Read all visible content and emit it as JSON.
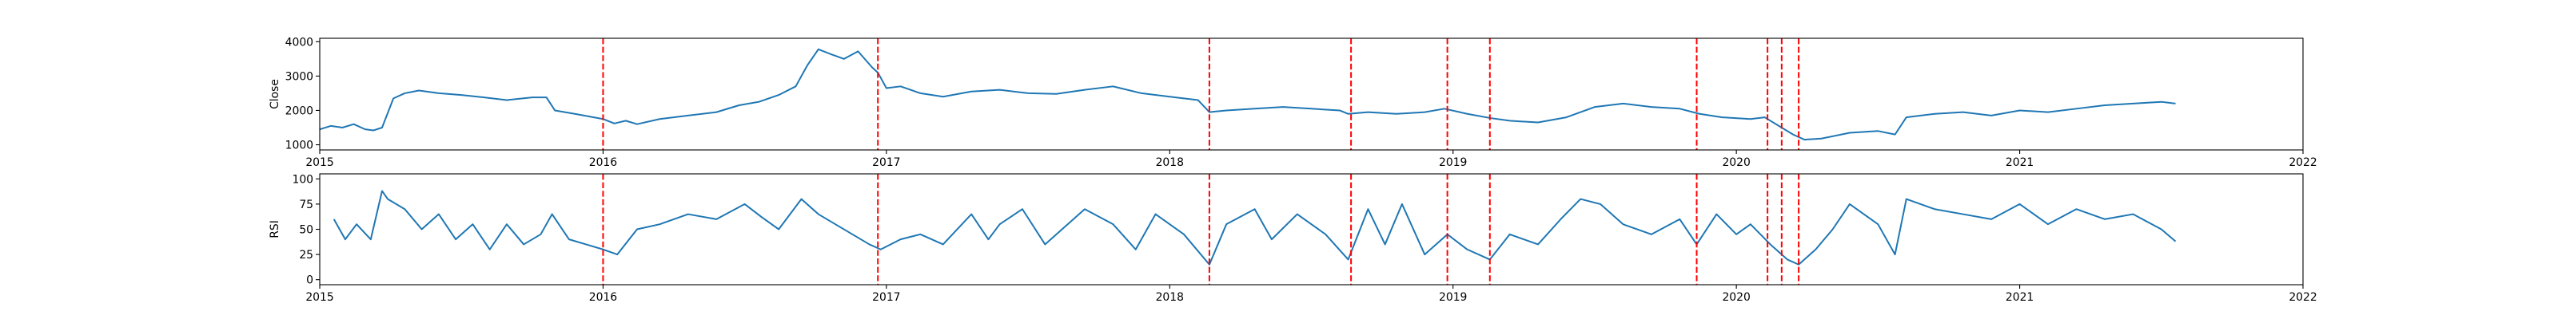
{
  "chart_data": [
    {
      "type": "line",
      "title": "",
      "xlabel": "",
      "ylabel": "Close",
      "xlim": [
        2015.0,
        2022.0
      ],
      "ylim": [
        850,
        4100
      ],
      "x_ticks": [
        2015,
        2016,
        2017,
        2018,
        2019,
        2020,
        2021,
        2022
      ],
      "x_tick_labels": [
        "2015",
        "2016",
        "2017",
        "2018",
        "2019",
        "2020",
        "2021",
        "2022"
      ],
      "y_ticks": [
        1000,
        2000,
        3000,
        4000
      ],
      "y_tick_labels": [
        "1000",
        "2000",
        "3000",
        "4000"
      ],
      "grid": false,
      "series": [
        {
          "color": "#1f77b4",
          "x": [
            2015.0,
            2015.04,
            2015.08,
            2015.12,
            2015.16,
            2015.19,
            2015.22,
            2015.26,
            2015.3,
            2015.35,
            2015.42,
            2015.5,
            2015.58,
            2015.66,
            2015.75,
            2015.8,
            2015.83,
            2015.9,
            2016.0,
            2016.04,
            2016.08,
            2016.12,
            2016.2,
            2016.3,
            2016.4,
            2016.48,
            2016.55,
            2016.62,
            2016.68,
            2016.72,
            2016.76,
            2016.8,
            2016.85,
            2016.9,
            2016.95,
            2016.97,
            2017.0,
            2017.05,
            2017.12,
            2017.2,
            2017.3,
            2017.4,
            2017.5,
            2017.6,
            2017.7,
            2017.8,
            2017.9,
            2018.0,
            2018.1,
            2018.14,
            2018.2,
            2018.3,
            2018.4,
            2018.5,
            2018.6,
            2018.63,
            2018.7,
            2018.8,
            2018.9,
            2018.97,
            2019.05,
            2019.13,
            2019.2,
            2019.3,
            2019.4,
            2019.5,
            2019.6,
            2019.7,
            2019.8,
            2019.87,
            2019.95,
            2020.05,
            2020.1,
            2020.15,
            2020.2,
            2020.24,
            2020.3,
            2020.4,
            2020.5,
            2020.56,
            2020.6,
            2020.7,
            2020.8,
            2020.9,
            2021.0,
            2021.1,
            2021.2,
            2021.3,
            2021.4,
            2021.5,
            2021.55
          ],
          "values": [
            1450,
            1550,
            1500,
            1600,
            1450,
            1420,
            1500,
            2350,
            2500,
            2580,
            2500,
            2450,
            2380,
            2300,
            2380,
            2380,
            2000,
            1900,
            1750,
            1620,
            1700,
            1600,
            1750,
            1850,
            1950,
            2150,
            2250,
            2450,
            2700,
            3300,
            3780,
            3650,
            3500,
            3720,
            3250,
            3100,
            2650,
            2700,
            2500,
            2400,
            2550,
            2600,
            2500,
            2480,
            2600,
            2700,
            2500,
            2400,
            2300,
            1950,
            2000,
            2050,
            2100,
            2050,
            2000,
            1900,
            1950,
            1900,
            1950,
            2050,
            1900,
            1780,
            1700,
            1650,
            1800,
            2100,
            2200,
            2100,
            2050,
            1900,
            1800,
            1750,
            1800,
            1550,
            1300,
            1150,
            1180,
            1350,
            1400,
            1300,
            1800,
            1900,
            1950,
            1850,
            2000,
            1950,
            2050,
            2150,
            2200,
            2250,
            2200
          ]
        }
      ],
      "vlines": {
        "color": "#ff0000",
        "style": "dashed",
        "x": [
          2016.0,
          2016.97,
          2018.14,
          2018.64,
          2018.98,
          2019.13,
          2019.86,
          2020.11,
          2020.16,
          2020.22
        ]
      }
    },
    {
      "type": "line",
      "title": "",
      "xlabel": "",
      "ylabel": "RSI",
      "xlim": [
        2015.0,
        2022.0
      ],
      "ylim": [
        -5,
        105
      ],
      "x_ticks": [
        2015,
        2016,
        2017,
        2018,
        2019,
        2020,
        2021,
        2022
      ],
      "x_tick_labels": [
        "2015",
        "2016",
        "2017",
        "2018",
        "2019",
        "2020",
        "2021",
        "2022"
      ],
      "y_ticks": [
        0,
        25,
        50,
        75,
        100
      ],
      "y_tick_labels": [
        "0",
        "25",
        "50",
        "75",
        "100"
      ],
      "grid": false,
      "series": [
        {
          "color": "#1f77b4",
          "x": [
            2015.05,
            2015.09,
            2015.13,
            2015.18,
            2015.22,
            2015.24,
            2015.3,
            2015.36,
            2015.42,
            2015.48,
            2015.54,
            2015.6,
            2015.66,
            2015.72,
            2015.78,
            2015.82,
            2015.88,
            2015.94,
            2016.0,
            2016.05,
            2016.12,
            2016.2,
            2016.3,
            2016.4,
            2016.5,
            2016.56,
            2016.62,
            2016.7,
            2016.76,
            2016.82,
            2016.88,
            2016.94,
            2016.98,
            2017.05,
            2017.12,
            2017.2,
            2017.3,
            2017.36,
            2017.4,
            2017.48,
            2017.56,
            2017.62,
            2017.7,
            2017.8,
            2017.88,
            2017.95,
            2018.05,
            2018.14,
            2018.2,
            2018.3,
            2018.36,
            2018.45,
            2018.55,
            2018.63,
            2018.7,
            2018.76,
            2018.82,
            2018.9,
            2018.98,
            2019.05,
            2019.13,
            2019.2,
            2019.3,
            2019.38,
            2019.45,
            2019.52,
            2019.6,
            2019.7,
            2019.8,
            2019.86,
            2019.93,
            2020.0,
            2020.05,
            2020.12,
            2020.18,
            2020.22,
            2020.28,
            2020.34,
            2020.4,
            2020.5,
            2020.56,
            2020.6,
            2020.7,
            2020.8,
            2020.9,
            2021.0,
            2021.1,
            2021.2,
            2021.3,
            2021.4,
            2021.5,
            2021.55
          ],
          "values": [
            60,
            40,
            55,
            40,
            88,
            80,
            70,
            50,
            65,
            40,
            55,
            30,
            55,
            35,
            45,
            65,
            40,
            35,
            30,
            25,
            50,
            55,
            65,
            60,
            75,
            62,
            50,
            80,
            65,
            55,
            45,
            35,
            30,
            40,
            45,
            35,
            65,
            40,
            55,
            70,
            35,
            50,
            70,
            55,
            30,
            65,
            45,
            15,
            55,
            70,
            40,
            65,
            45,
            20,
            70,
            35,
            75,
            25,
            45,
            30,
            20,
            45,
            35,
            60,
            80,
            75,
            55,
            45,
            60,
            35,
            65,
            45,
            55,
            35,
            20,
            15,
            30,
            50,
            75,
            55,
            25,
            80,
            70,
            65,
            60,
            75,
            55,
            70,
            60,
            65,
            50,
            38
          ]
        }
      ],
      "vlines": {
        "color": "#ff0000",
        "style": "dashed",
        "x": [
          2016.0,
          2016.97,
          2018.14,
          2018.64,
          2018.98,
          2019.13,
          2019.86,
          2020.11,
          2020.16,
          2020.22
        ]
      }
    }
  ]
}
